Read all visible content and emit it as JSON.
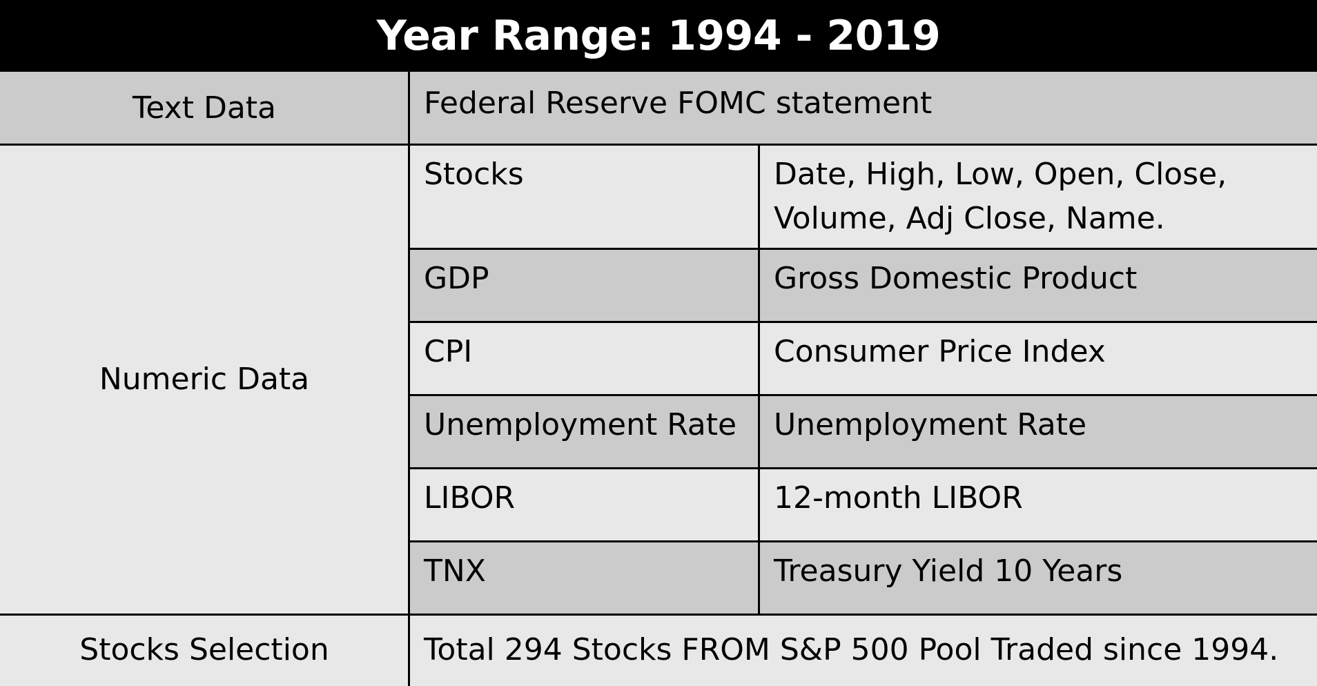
{
  "title": "Year Range: 1994 - 2019",
  "text_data": {
    "label": "Text Data",
    "value": "Federal Reserve FOMC statement"
  },
  "numeric_data": {
    "label": "Numeric Data",
    "rows": [
      {
        "name": "Stocks",
        "desc_line1": "Date, High, Low, Open, Close,",
        "desc_line2": "Volume, Adj Close, Name."
      },
      {
        "name": "GDP",
        "desc": "Gross Domestic Product"
      },
      {
        "name": "CPI",
        "desc": "Consumer Price Index"
      },
      {
        "name": "Unemployment Rate",
        "desc": "Unemployment Rate"
      },
      {
        "name": "LIBOR",
        "desc": "12-month LIBOR"
      },
      {
        "name": "TNX",
        "desc": "Treasury Yield 10 Years"
      }
    ]
  },
  "stocks_selection": {
    "label": "Stocks Selection",
    "value": "Total 294 Stocks FROM S&P 500 Pool Traded since 1994."
  }
}
